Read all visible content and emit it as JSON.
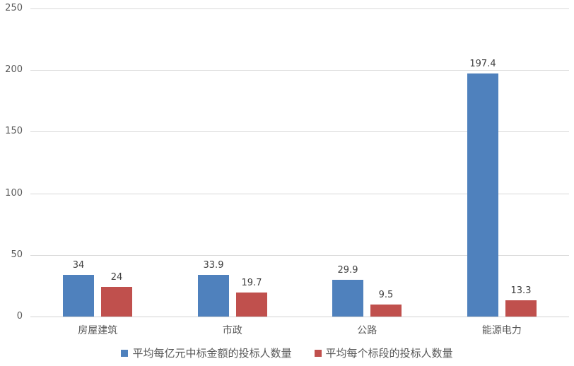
{
  "chart_data": {
    "type": "bar",
    "categories": [
      "房屋建筑",
      "市政",
      "公路",
      "能源电力"
    ],
    "series": [
      {
        "name": "平均每亿元中标金额的投标人数量",
        "color": "#4f81bd",
        "values": [
          34,
          33.9,
          29.9,
          197.4
        ]
      },
      {
        "name": "平均每个标段的投标人数量",
        "color": "#c0504d",
        "values": [
          24,
          19.7,
          9.5,
          13.3
        ]
      }
    ],
    "title": "",
    "xlabel": "",
    "ylabel": "",
    "ylim": [
      0,
      250
    ],
    "yticks": [
      0,
      50,
      100,
      150,
      200,
      250
    ],
    "grid": true,
    "data_labels": true,
    "legend_position": "bottom",
    "colors": {
      "gridline": "#d9d9d9",
      "axis_line": "#d2d2d2",
      "tick_label_text": "#595959",
      "data_label_text": "#404040",
      "category_label_text": "#595959",
      "legend_text": "#595959",
      "background": "#ffffff"
    }
  }
}
